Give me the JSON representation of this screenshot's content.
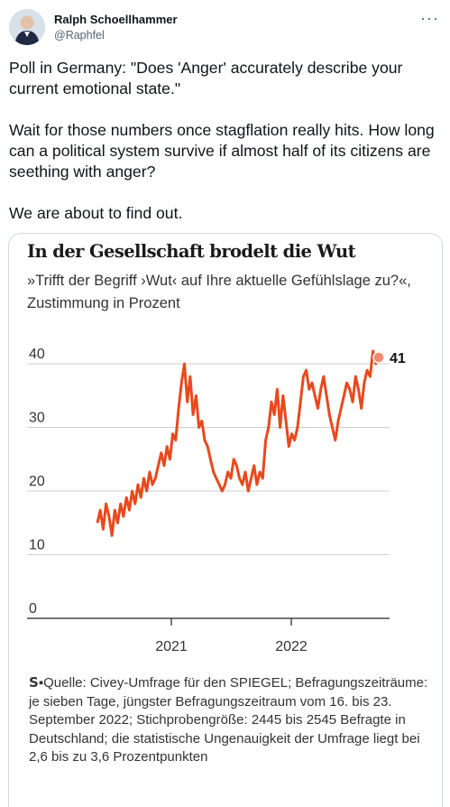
{
  "tweet": {
    "author_name": "Ralph Schoellhammer",
    "author_handle": "@Raphfel",
    "more_label": "···",
    "text": "Poll in Germany: \"Does 'Anger' accurately describe your current emotional state.\"\n\nWait for those numbers once stagflation really hits. How long can a political system survive if almost half of its citizens are seething with anger?\n\nWe are about to find out."
  },
  "media": {
    "source_logo": "S",
    "source_text": "▪Quelle: Civey-Umfrage für den SPIEGEL; Befragungszeiträume: je sieben Tage, jüngster Befragungszeitraum vom 16. bis 23. September 2022; Stichprobengröße: 2445 bis 2545 Befragte in Deutschland; die statistische Ungenauigkeit der Umfrage liegt bei 2,6 bis zu 3,6 Prozentpunkten"
  },
  "chart_data": {
    "type": "line",
    "title": "In der Gesellschaft brodelt die Wut",
    "subtitle": "»Trifft der Begriff ›Wut‹ auf Ihre aktuelle Gefühlslage zu?«, Zustimmung in Prozent",
    "ylim": [
      0,
      40
    ],
    "yticks": [
      "40",
      "30",
      "20",
      "10",
      "0"
    ],
    "xticks": [
      "2021",
      "2022"
    ],
    "end_label": "41",
    "grid": true,
    "line_color": "#e8491d",
    "series": [
      {
        "values": [
          15,
          17,
          14,
          18,
          16,
          13,
          17,
          15,
          18,
          16,
          19,
          17,
          20,
          18,
          21,
          19,
          22,
          20,
          23,
          21,
          22,
          24,
          26,
          24,
          27,
          25,
          29,
          28,
          33,
          37,
          40,
          34,
          38,
          32,
          35,
          30,
          31,
          28,
          27,
          25,
          23,
          22,
          21,
          20,
          21,
          23,
          22,
          25,
          24,
          22,
          21,
          23,
          20,
          22,
          24,
          21,
          23,
          22,
          28,
          30,
          34,
          32,
          36,
          30,
          35,
          31,
          27,
          29,
          28,
          30,
          34,
          38,
          39,
          36,
          37,
          35,
          33,
          36,
          38,
          35,
          32,
          30,
          28,
          31,
          33,
          35,
          37,
          36,
          34,
          38,
          36,
          33,
          37,
          39,
          38,
          42,
          40,
          41
        ]
      }
    ]
  }
}
